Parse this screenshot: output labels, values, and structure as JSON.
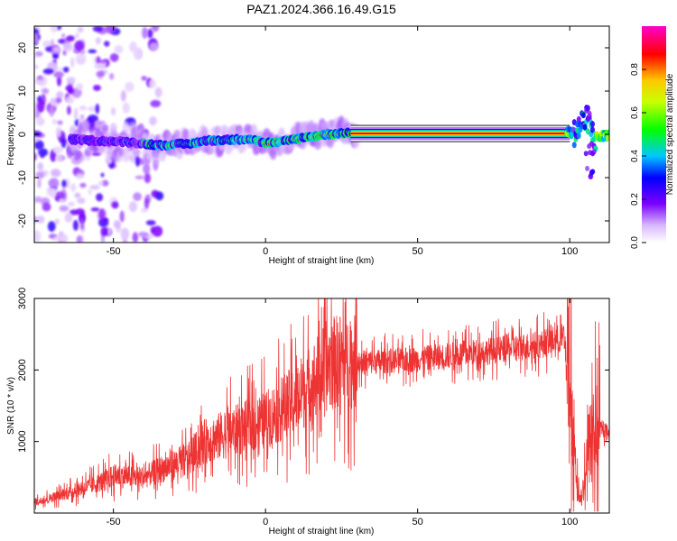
{
  "title": "PAZ1.2024.366.16.49.G15",
  "chart_data": [
    {
      "type": "heatmap",
      "xlabel": "Height of straight line (km)",
      "ylabel": "Frequency (Hz)",
      "xlim": [
        -76,
        113
      ],
      "ylim": [
        -25,
        25
      ],
      "x_ticks": [
        -50,
        0,
        50,
        100
      ],
      "y_ticks": [
        -20,
        -10,
        0,
        10,
        20
      ],
      "x_tick_labels": [
        "-50",
        "0",
        "50",
        "100"
      ],
      "y_tick_labels": [
        "-20",
        "-10",
        "0",
        "10",
        "20"
      ],
      "colorbar": {
        "label": "Normalized spectral amplitude",
        "range": [
          0,
          1
        ],
        "ticks": [
          0.0,
          0.2,
          0.4,
          0.6,
          0.8
        ],
        "tick_labels": [
          "0.0",
          "0.2",
          "0.4",
          "0.6",
          "0.8"
        ]
      },
      "ridge": {
        "x": [
          -62,
          -55,
          -45,
          -35,
          -25,
          -20,
          -10,
          -5,
          0,
          5,
          10,
          15,
          20,
          25,
          30,
          50,
          80,
          98,
          102,
          104,
          106,
          108,
          113
        ],
        "y": [
          -1.2,
          -1.5,
          -1.8,
          -2.5,
          -2.2,
          -1.5,
          -1.2,
          -1.0,
          -2.0,
          -1.8,
          -1.0,
          -0.5,
          0,
          0.3,
          0.2,
          0.2,
          0.2,
          0.2,
          0.5,
          2.5,
          3.5,
          -1.0,
          0.0
        ]
      }
    },
    {
      "type": "line",
      "xlabel": "Height of straight line (km)",
      "ylabel": "SNR (10 * v/v)",
      "xlim": [
        -76,
        113
      ],
      "ylim": [
        0,
        3000
      ],
      "x_ticks": [
        -50,
        0,
        50,
        100
      ],
      "y_ticks": [
        1000,
        2000,
        3000
      ],
      "x_tick_labels": [
        "-50",
        "0",
        "50",
        "100"
      ],
      "y_tick_labels": [
        "1000",
        "2000",
        "3000"
      ],
      "color": "#ee3333",
      "envelope": {
        "x": [
          -76,
          -65,
          -55,
          -50,
          -40,
          -35,
          -25,
          -20,
          0,
          10,
          15,
          20,
          25,
          30,
          50,
          70,
          90,
          95,
          98,
          100,
          102,
          104,
          106,
          108,
          113
        ],
        "y": [
          150,
          280,
          420,
          520,
          500,
          600,
          760,
          1000,
          1300,
          1600,
          1800,
          2050,
          2150,
          2100,
          2150,
          2250,
          2350,
          2420,
          2450,
          1800,
          400,
          200,
          900,
          1150,
          1150
        ]
      }
    }
  ]
}
